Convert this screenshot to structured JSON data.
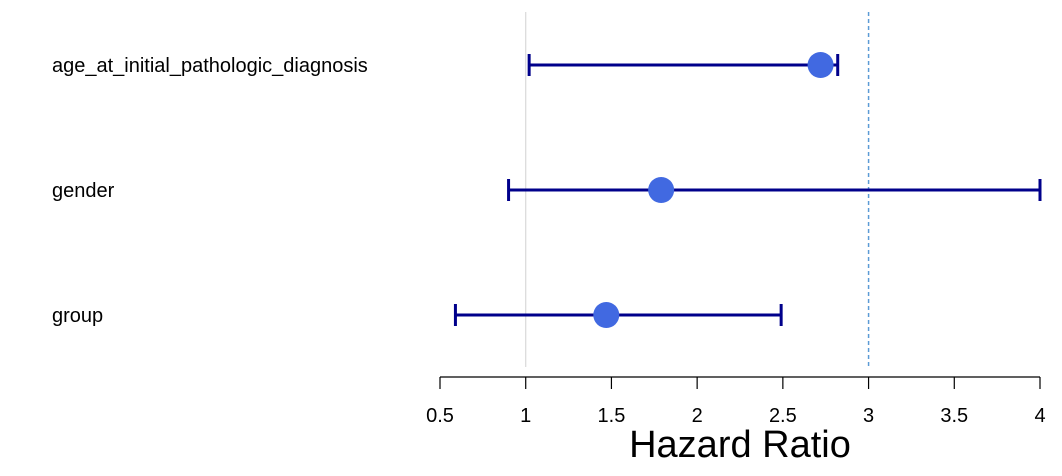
{
  "chart_data": {
    "type": "scatter",
    "subtype": "forest-plot",
    "title": "",
    "xlabel": "Hazard Ratio",
    "ylabel": "",
    "xlim": [
      0.5,
      4
    ],
    "x_ticks": [
      0.5,
      1,
      1.5,
      2,
      2.5,
      3,
      3.5,
      4
    ],
    "x_tick_labels": [
      "0.5",
      "1",
      "1.5",
      "2",
      "2.5",
      "3",
      "3.5",
      "4"
    ],
    "grid": false,
    "reference_lines": [
      {
        "x": 1,
        "style": "solid",
        "color": "#d9d9d9"
      },
      {
        "x": 3,
        "style": "dashed",
        "color": "#5b9bd5"
      }
    ],
    "rows": [
      {
        "label": "age_at_initial_pathologic_diagnosis",
        "hr": 2.72,
        "lower": 1.02,
        "upper": 2.82
      },
      {
        "label": "gender",
        "hr": 1.79,
        "lower": 0.9,
        "upper": 4.0
      },
      {
        "label": "group",
        "hr": 1.47,
        "lower": 0.59,
        "upper": 2.49
      }
    ],
    "colors": {
      "point": "#4169e1",
      "interval": "#00008b",
      "axis": "#000000"
    }
  }
}
